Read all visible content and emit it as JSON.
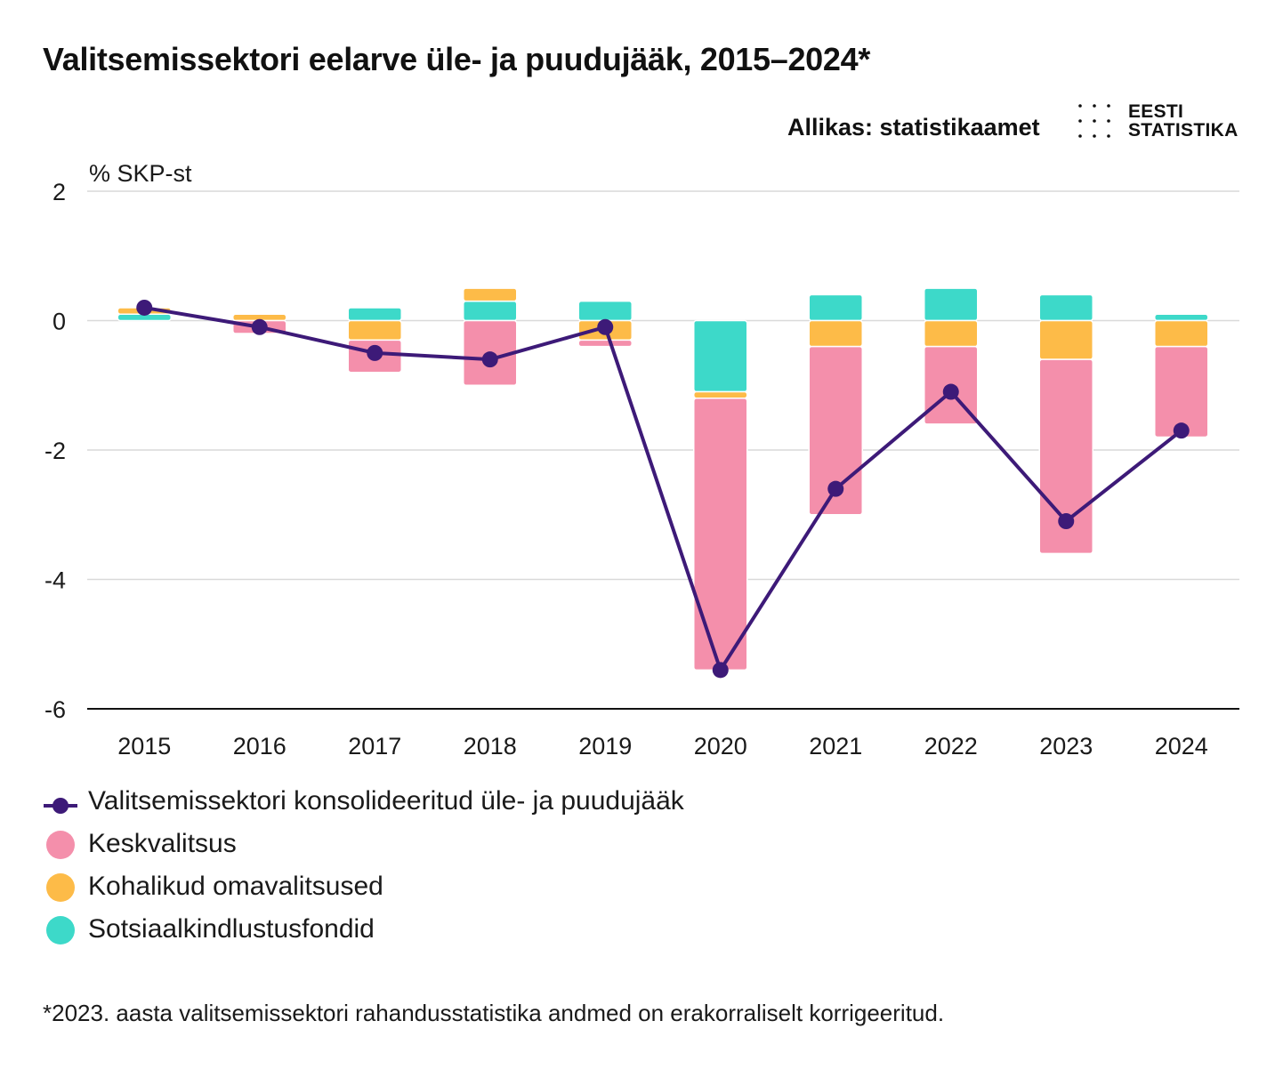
{
  "title": "Valitsemissektori eelarve üle- ja puudujääk, 2015–2024*",
  "source": "Allikas: statistikaamet",
  "logo": {
    "line1": "EESTI",
    "line2": "STATISTIKA"
  },
  "footnote": "*2023. aasta valitsemissektori rahandusstatistika andmed on erakorraliselt korrigeeritud.",
  "colors": {
    "line": "#3d1a78",
    "keskvalitsus": "#f48fab",
    "kohalikud": "#fdbb48",
    "sotsiaal": "#3dd9c9",
    "grid": "#d9d9d9",
    "axis": "#111111"
  },
  "legend": [
    {
      "name": "Valitsemissektori konsolideeritud üle- ja puudujääk",
      "type": "line",
      "color_key": "line"
    },
    {
      "name": "Keskvalitsus",
      "type": "circle",
      "color_key": "keskvalitsus"
    },
    {
      "name": "Kohalikud omavalitsused",
      "type": "circle",
      "color_key": "kohalikud"
    },
    {
      "name": "Sotsiaalkindlustusfondid",
      "type": "circle",
      "color_key": "sotsiaal"
    }
  ],
  "chart_data": {
    "type": "bar",
    "stacked": true,
    "title": "Valitsemissektori eelarve üle- ja puudujääk, 2015–2024*",
    "ylabel": "% SKP-st",
    "ylim": [
      -6,
      2
    ],
    "yticks": [
      2,
      0,
      -2,
      -4,
      -6
    ],
    "grid": true,
    "categories": [
      "2015",
      "2016",
      "2017",
      "2018",
      "2019",
      "2020",
      "2021",
      "2022",
      "2023",
      "2024"
    ],
    "series": [
      {
        "name": "Sotsiaalkindlustusfondid",
        "color_key": "sotsiaal",
        "values": [
          0.1,
          0.0,
          0.2,
          0.3,
          0.3,
          -1.1,
          0.4,
          0.5,
          0.4,
          0.1
        ]
      },
      {
        "name": "Kohalikud omavalitsused",
        "color_key": "kohalikud",
        "values": [
          0.1,
          0.1,
          -0.3,
          0.2,
          -0.3,
          -0.1,
          -0.4,
          -0.4,
          -0.6,
          -0.4
        ]
      },
      {
        "name": "Keskvalitsus",
        "color_key": "keskvalitsus",
        "values": [
          0.0,
          -0.2,
          -0.5,
          -1.0,
          -0.1,
          -4.2,
          -2.6,
          -1.2,
          -3.0,
          -1.4
        ]
      }
    ],
    "line": {
      "name": "Valitsemissektori konsolideeritud üle- ja puudujääk",
      "color_key": "line",
      "values": [
        0.2,
        -0.1,
        -0.5,
        -0.6,
        -0.1,
        -5.4,
        -2.6,
        -1.1,
        -3.1,
        -1.7
      ]
    }
  }
}
